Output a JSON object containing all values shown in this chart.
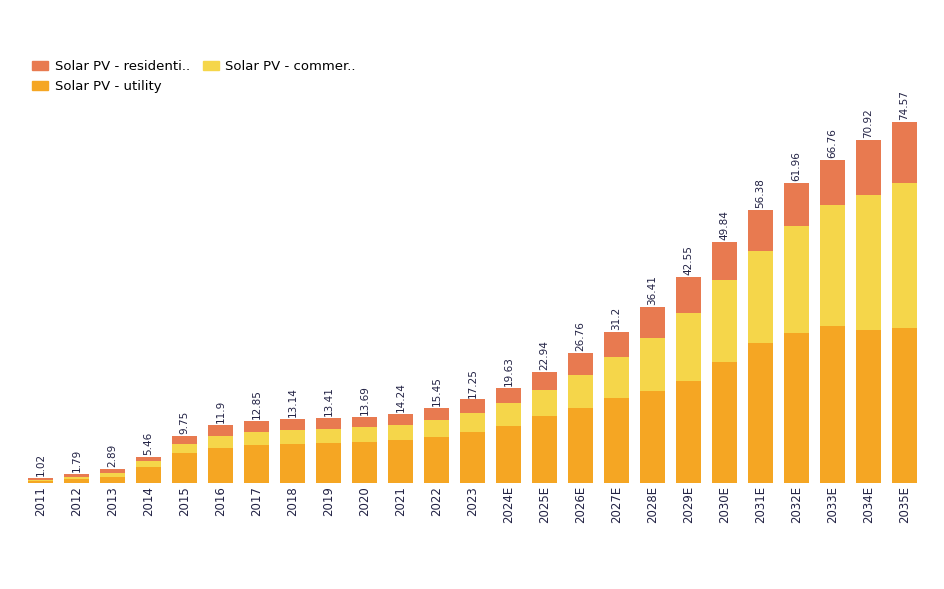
{
  "years": [
    "2011",
    "2012",
    "2013",
    "2014",
    "2015",
    "2016",
    "2017",
    "2018",
    "2019",
    "2020",
    "2021",
    "2022",
    "2023",
    "2024E",
    "2025E",
    "2026E",
    "2027E",
    "2028E",
    "2029E",
    "2030E",
    "2031E",
    "2032E",
    "2033E",
    "2034E",
    "2035E"
  ],
  "totals": [
    1.02,
    1.79,
    2.89,
    5.46,
    9.75,
    11.9,
    12.85,
    13.14,
    13.41,
    13.69,
    14.24,
    15.45,
    17.25,
    19.63,
    22.94,
    26.76,
    31.2,
    36.41,
    42.55,
    49.84,
    56.38,
    61.96,
    66.76,
    70.92,
    74.57
  ],
  "utility": [
    0.5,
    0.8,
    1.2,
    3.2,
    6.2,
    7.2,
    7.8,
    8.0,
    8.2,
    8.4,
    8.8,
    9.5,
    10.5,
    11.8,
    13.8,
    15.5,
    17.5,
    19.0,
    21.0,
    25.0,
    29.0,
    31.0,
    32.5,
    31.5,
    32.0
  ],
  "commercial": [
    0.2,
    0.4,
    0.8,
    1.4,
    1.8,
    2.4,
    2.8,
    2.9,
    3.0,
    3.1,
    3.2,
    3.6,
    4.0,
    4.7,
    5.5,
    6.8,
    8.5,
    11.0,
    14.0,
    17.0,
    19.0,
    22.0,
    25.0,
    28.0,
    30.0
  ],
  "residential": [
    0.32,
    0.59,
    0.89,
    0.86,
    1.75,
    2.3,
    2.25,
    2.24,
    2.21,
    2.19,
    2.24,
    2.35,
    2.75,
    3.13,
    3.64,
    4.46,
    5.2,
    6.41,
    7.55,
    7.84,
    8.38,
    8.96,
    9.26,
    11.42,
    12.57
  ],
  "color_utility": "#F5A623",
  "color_commercial": "#F5D64A",
  "color_residential": "#E87A50",
  "label_residential": "Solar PV - residenti..",
  "label_utility": "Solar PV - utility",
  "label_commercial": "Solar PV - commer..",
  "background_color": "#ffffff",
  "label_fontsize": 7.5,
  "tick_fontsize": 8.5
}
